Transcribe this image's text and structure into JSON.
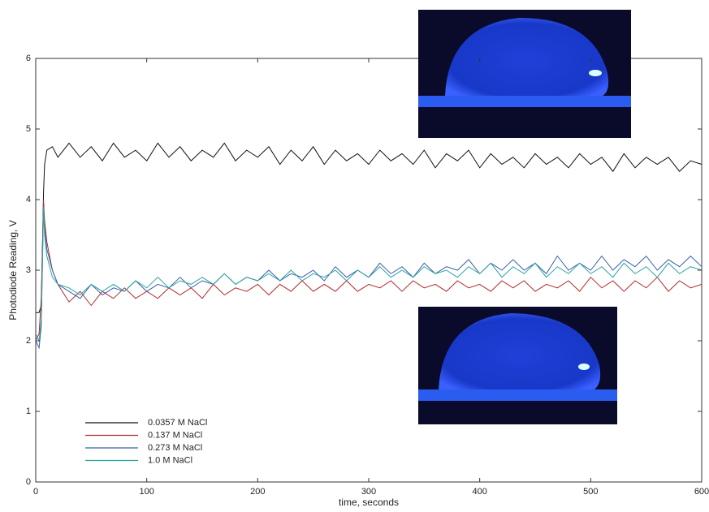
{
  "chart_data": {
    "type": "line",
    "xlabel": "time, seconds",
    "ylabel": "Photodiode Reading, V",
    "xlim": [
      0,
      600
    ],
    "ylim": [
      0,
      6
    ],
    "xticks": [
      0,
      100,
      200,
      300,
      400,
      500,
      600
    ],
    "yticks": [
      0,
      1,
      2,
      3,
      4,
      5,
      6
    ],
    "legend": "lower left",
    "x": [
      0,
      3,
      5,
      7,
      8,
      10,
      15,
      20,
      30,
      40,
      50,
      60,
      70,
      80,
      90,
      100,
      110,
      120,
      130,
      140,
      150,
      160,
      170,
      180,
      190,
      200,
      210,
      220,
      230,
      240,
      250,
      260,
      270,
      280,
      290,
      300,
      310,
      320,
      330,
      340,
      350,
      360,
      370,
      380,
      390,
      400,
      410,
      420,
      430,
      440,
      450,
      460,
      470,
      480,
      490,
      500,
      510,
      520,
      530,
      540,
      550,
      560,
      570,
      580,
      590,
      600
    ],
    "series": [
      {
        "name": "0.0357 M NaCl",
        "color": "#111111",
        "values": [
          2.4,
          2.4,
          2.5,
          4.1,
          4.5,
          4.7,
          4.75,
          4.6,
          4.8,
          4.6,
          4.75,
          4.55,
          4.8,
          4.6,
          4.7,
          4.55,
          4.8,
          4.6,
          4.75,
          4.55,
          4.7,
          4.6,
          4.8,
          4.55,
          4.7,
          4.6,
          4.75,
          4.5,
          4.7,
          4.55,
          4.75,
          4.5,
          4.7,
          4.55,
          4.65,
          4.5,
          4.7,
          4.55,
          4.65,
          4.5,
          4.7,
          4.45,
          4.65,
          4.55,
          4.7,
          4.45,
          4.65,
          4.5,
          4.6,
          4.45,
          4.65,
          4.5,
          4.6,
          4.45,
          4.65,
          4.5,
          4.6,
          4.4,
          4.65,
          4.45,
          4.6,
          4.5,
          4.6,
          4.4,
          4.55,
          4.5
        ]
      },
      {
        "name": "0.137 M NaCl",
        "color": "#b02a2a",
        "values": [
          2.0,
          2.1,
          2.6,
          4.0,
          3.7,
          3.4,
          3.0,
          2.8,
          2.55,
          2.7,
          2.5,
          2.7,
          2.6,
          2.75,
          2.6,
          2.7,
          2.6,
          2.75,
          2.65,
          2.75,
          2.6,
          2.8,
          2.65,
          2.75,
          2.7,
          2.8,
          2.65,
          2.8,
          2.7,
          2.85,
          2.7,
          2.8,
          2.7,
          2.85,
          2.7,
          2.8,
          2.75,
          2.85,
          2.7,
          2.85,
          2.75,
          2.8,
          2.7,
          2.85,
          2.75,
          2.8,
          2.7,
          2.85,
          2.75,
          2.85,
          2.7,
          2.8,
          2.75,
          2.85,
          2.7,
          2.9,
          2.75,
          2.85,
          2.7,
          2.85,
          2.75,
          2.9,
          2.7,
          2.85,
          2.75,
          2.8
        ]
      },
      {
        "name": "0.273 M NaCl",
        "color": "#3c5fa8",
        "values": [
          2.0,
          1.9,
          2.2,
          3.9,
          3.6,
          3.3,
          3.0,
          2.8,
          2.7,
          2.6,
          2.8,
          2.65,
          2.75,
          2.7,
          2.85,
          2.7,
          2.8,
          2.75,
          2.9,
          2.75,
          2.85,
          2.8,
          2.95,
          2.8,
          2.9,
          2.85,
          3.0,
          2.85,
          2.95,
          2.9,
          3.0,
          2.85,
          3.05,
          2.9,
          3.0,
          2.9,
          3.1,
          2.95,
          3.05,
          2.9,
          3.1,
          2.95,
          3.05,
          3.0,
          3.15,
          2.95,
          3.1,
          3.0,
          3.15,
          3.0,
          3.1,
          2.95,
          3.2,
          3.0,
          3.1,
          3.0,
          3.2,
          3.0,
          3.15,
          3.05,
          3.2,
          3.0,
          3.15,
          3.05,
          3.2,
          3.05
        ]
      },
      {
        "name": "1.0 M NaCl",
        "color": "#2aa3a3",
        "values": [
          2.1,
          2.0,
          2.3,
          3.9,
          3.5,
          3.2,
          2.9,
          2.8,
          2.75,
          2.65,
          2.8,
          2.7,
          2.8,
          2.7,
          2.85,
          2.75,
          2.9,
          2.75,
          2.85,
          2.8,
          2.9,
          2.8,
          2.95,
          2.8,
          2.9,
          2.85,
          2.95,
          2.85,
          3.0,
          2.85,
          2.95,
          2.9,
          3.0,
          2.85,
          3.0,
          2.9,
          3.05,
          2.9,
          3.0,
          2.9,
          3.05,
          2.95,
          3.0,
          2.9,
          3.05,
          2.95,
          3.1,
          2.9,
          3.05,
          2.95,
          3.1,
          2.9,
          3.05,
          2.95,
          3.1,
          2.95,
          3.05,
          2.9,
          3.1,
          2.95,
          3.05,
          2.9,
          3.1,
          2.95,
          3.05,
          3.0
        ]
      }
    ]
  }
}
